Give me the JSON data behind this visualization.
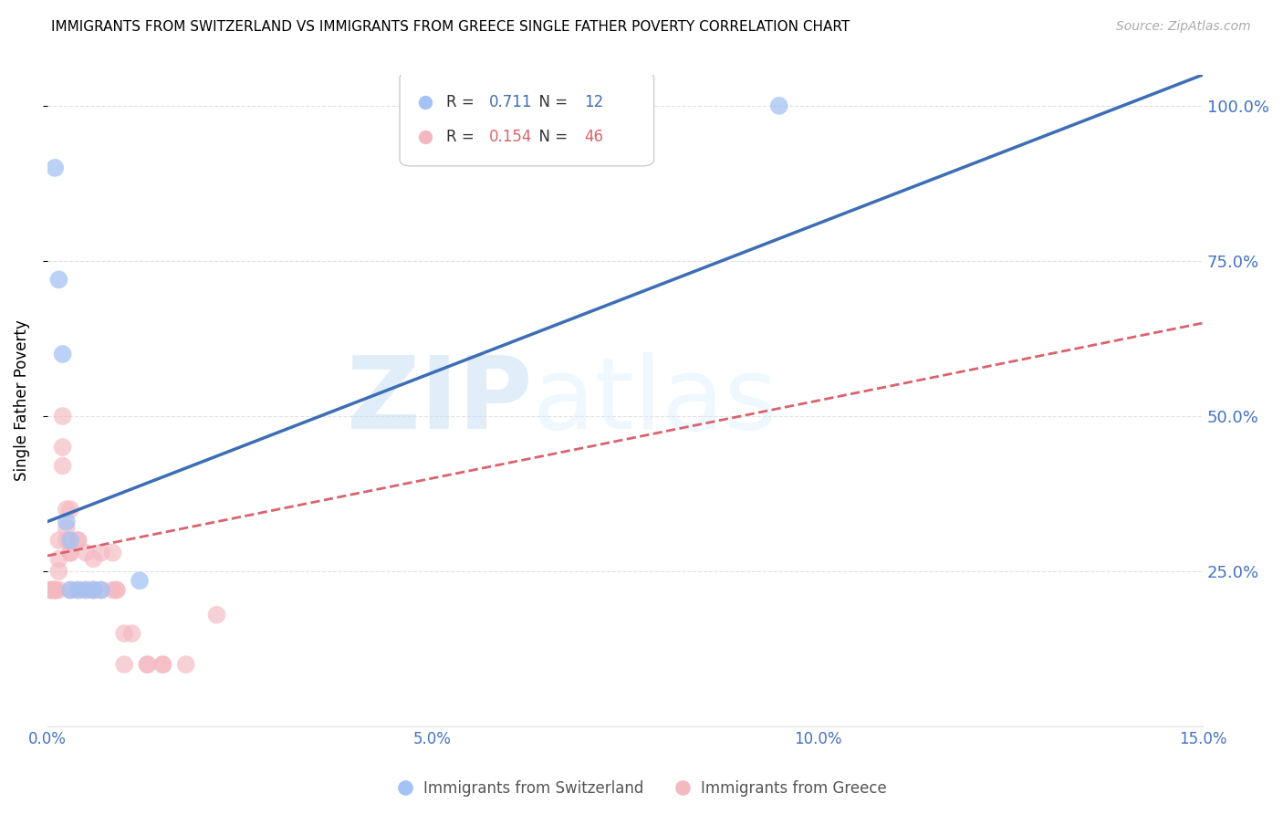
{
  "title": "IMMIGRANTS FROM SWITZERLAND VS IMMIGRANTS FROM GREECE SINGLE FATHER POVERTY CORRELATION CHART",
  "source": "Source: ZipAtlas.com",
  "ylabel": "Single Father Poverty",
  "r_switzerland": 0.711,
  "n_switzerland": 12,
  "r_greece": 0.154,
  "n_greece": 46,
  "x_switzerland": [
    0.001,
    0.0015,
    0.002,
    0.0025,
    0.003,
    0.003,
    0.004,
    0.005,
    0.006,
    0.007,
    0.012,
    0.095
  ],
  "y_switzerland": [
    0.9,
    0.72,
    0.6,
    0.33,
    0.3,
    0.22,
    0.22,
    0.22,
    0.22,
    0.22,
    0.235,
    1.0
  ],
  "x_greece": [
    0.0005,
    0.0005,
    0.0005,
    0.001,
    0.001,
    0.001,
    0.001,
    0.001,
    0.001,
    0.0015,
    0.0015,
    0.0015,
    0.0015,
    0.002,
    0.002,
    0.002,
    0.0025,
    0.0025,
    0.0025,
    0.003,
    0.003,
    0.003,
    0.003,
    0.004,
    0.004,
    0.004,
    0.005,
    0.005,
    0.006,
    0.006,
    0.006,
    0.007,
    0.007,
    0.0085,
    0.0085,
    0.009,
    0.009,
    0.01,
    0.01,
    0.011,
    0.013,
    0.013,
    0.015,
    0.015,
    0.018,
    0.022
  ],
  "y_greece": [
    0.22,
    0.22,
    0.22,
    0.22,
    0.22,
    0.22,
    0.22,
    0.22,
    0.22,
    0.25,
    0.27,
    0.3,
    0.22,
    0.5,
    0.45,
    0.42,
    0.35,
    0.32,
    0.3,
    0.28,
    0.28,
    0.22,
    0.35,
    0.3,
    0.3,
    0.22,
    0.28,
    0.22,
    0.27,
    0.22,
    0.22,
    0.22,
    0.28,
    0.28,
    0.22,
    0.22,
    0.22,
    0.15,
    0.1,
    0.15,
    0.1,
    0.1,
    0.1,
    0.1,
    0.1,
    0.18
  ],
  "color_switzerland": "#a4c2f4",
  "color_greece": "#f4b8c1",
  "color_trendline_switzerland": "#3d6eb5",
  "color_trendline_greece": "#d9636e",
  "background_color": "#ffffff",
  "grid_color": "#e0e0e0",
  "axis_label_color": "#4472c4",
  "xlim": [
    0.0,
    0.15
  ],
  "ylim": [
    0.0,
    1.05
  ],
  "xticks": [
    0.0,
    0.05,
    0.1,
    0.15
  ],
  "yticks": [
    0.25,
    0.5,
    0.75,
    1.0
  ],
  "watermark_zip": "ZIP",
  "watermark_atlas": "atlas",
  "title_fontsize": 11,
  "legend_fontsize": 12,
  "trendline_sw_x0": 0.0,
  "trendline_sw_y0": 0.33,
  "trendline_sw_x1": 0.15,
  "trendline_sw_y1": 1.05,
  "trendline_gr_x0": 0.0,
  "trendline_gr_y0": 0.275,
  "trendline_gr_x1": 0.15,
  "trendline_gr_y1": 0.65
}
